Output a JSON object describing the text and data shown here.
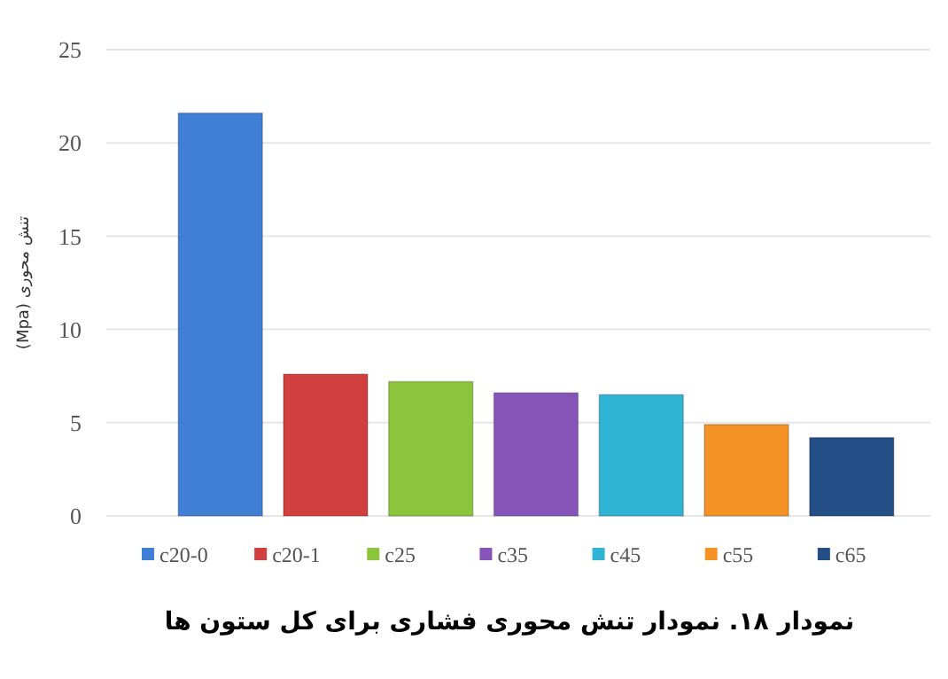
{
  "chart_data": {
    "type": "bar",
    "title": "نمودار ۱۸. نمودار تنش محوری فشاری برای کل ستون ها",
    "ylabel": "تنش محوری (Mpa)",
    "categories": [
      null
    ],
    "series": [
      {
        "name": "c20-0",
        "color": "#3f7fd6",
        "values": [
          21.6
        ]
      },
      {
        "name": "c20-1",
        "color": "#d23f3f",
        "values": [
          7.6
        ]
      },
      {
        "name": "c25",
        "color": "#8cc43c",
        "values": [
          7.2
        ]
      },
      {
        "name": "c35",
        "color": "#8454b8",
        "values": [
          6.6
        ]
      },
      {
        "name": "c45",
        "color": "#2fb4d4",
        "values": [
          6.5
        ]
      },
      {
        "name": "c55",
        "color": "#f49226",
        "values": [
          4.9
        ]
      },
      {
        "name": "c65",
        "color": "#244e86",
        "values": [
          4.2
        ]
      }
    ],
    "ylim": [
      0,
      25
    ],
    "yticks": [
      0,
      5,
      10,
      15,
      20,
      25
    ],
    "grid": "y",
    "legend": "bottom"
  }
}
